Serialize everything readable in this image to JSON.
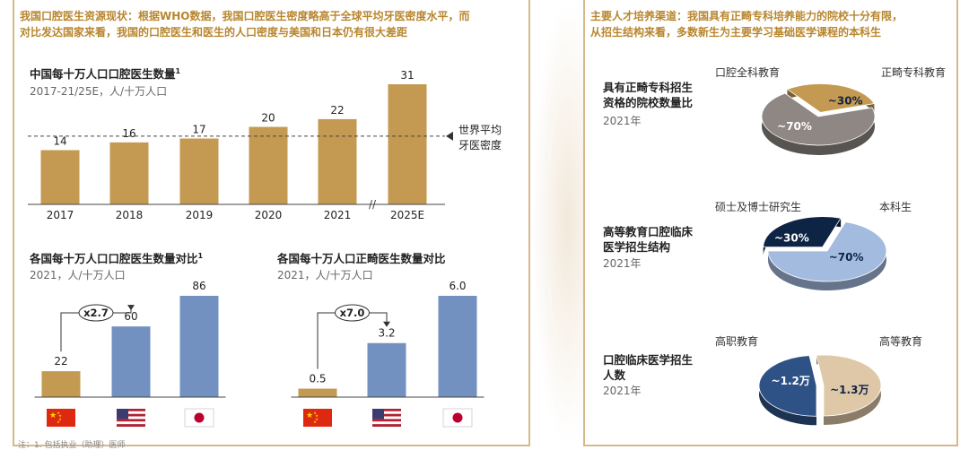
{
  "left": {
    "headline": [
      "我国口腔医生资源现状：根据WHO数据，我国口腔医生密度略高于全球平均牙医密度水平，而",
      "对比发达国家来看，我国的口腔医生和医生的人口密度与美国和日本仍有很大差距"
    ],
    "bottom_note": "注：1. 包括执业（助理）医师"
  },
  "right": {
    "headline": [
      "主要人才培养渠道：我国具有正畸专科培养能力的院校十分有限，",
      "从招生结构来看，多数新生为主要学习基础医学课程的本科生"
    ]
  },
  "colors": {
    "gold": "#c49a52",
    "blue": "#7291c0",
    "gray_pie": "#8e8784",
    "navy": "#0e2444",
    "light_blue": "#a4bbe0",
    "dark_blue": "#2e5286",
    "beige": "#dfc8a7",
    "headline": "#b8862e"
  },
  "chart_data": [
    {
      "type": "bar",
      "title": "中国每十万人口口腔医生数量",
      "title_sup": "1",
      "subtitle": "2017-21/25E，人/十万人口",
      "categories": [
        "2017",
        "2018",
        "2019",
        "2020",
        "2021",
        "2025E"
      ],
      "values": [
        14,
        16,
        17,
        20,
        22,
        31
      ],
      "ylim": [
        0,
        31
      ],
      "reference_line": {
        "value": 17.6,
        "label": [
          "世界平均",
          "牙医密度"
        ]
      },
      "axis_break": "//"
    },
    {
      "type": "bar",
      "title": "各国每十万人口口腔医生数量对比",
      "title_sup": "1",
      "subtitle": "2021，人/十万人口",
      "categories": [
        "china-flag",
        "usa-flag",
        "japan-flag"
      ],
      "values": [
        22,
        60,
        86
      ],
      "ylim": [
        0,
        86
      ],
      "multiplier_label": "x2.7"
    },
    {
      "type": "bar",
      "title": "各国每十万人口正畸医生数量对比",
      "subtitle": "2021，人/十万人口",
      "categories": [
        "china-flag",
        "usa-flag",
        "japan-flag"
      ],
      "values": [
        0.5,
        3.2,
        6.0
      ],
      "value_labels": [
        "0.5",
        "3.2",
        "6.0"
      ],
      "ylim": [
        0,
        6
      ],
      "multiplier_label": "x7.0"
    },
    {
      "type": "pie",
      "title": [
        "具有正畸专科招生",
        "资格的院校数量比"
      ],
      "year": "2021年",
      "legend": [
        "口腔全科教育",
        "正畸专科教育"
      ],
      "slices": [
        {
          "label": "口腔全科教育",
          "value": 70,
          "text": "~70%",
          "color": "#8e8784"
        },
        {
          "label": "正畸专科教育",
          "value": 30,
          "text": "~30%",
          "color": "#c49a52"
        }
      ]
    },
    {
      "type": "pie",
      "title": [
        "高等教育口腔临床",
        "医学招生结构"
      ],
      "year": "2021年",
      "legend": [
        "硕士及博士研究生",
        "本科生"
      ],
      "slices": [
        {
          "label": "硕士及博士研究生",
          "value": 30,
          "text": "~30%",
          "color": "#0e2444"
        },
        {
          "label": "本科生",
          "value": 70,
          "text": "~70%",
          "color": "#a4bbe0"
        }
      ]
    },
    {
      "type": "pie",
      "title": [
        "口腔临床医学招生",
        "人数"
      ],
      "year": "2021年",
      "legend": [
        "高职教育",
        "高等教育"
      ],
      "slices": [
        {
          "label": "高职教育",
          "value": 1.2,
          "text": "~1.2万",
          "color": "#2e5286"
        },
        {
          "label": "高等教育",
          "value": 1.3,
          "text": "~1.3万",
          "color": "#dfc8a7"
        }
      ]
    }
  ]
}
